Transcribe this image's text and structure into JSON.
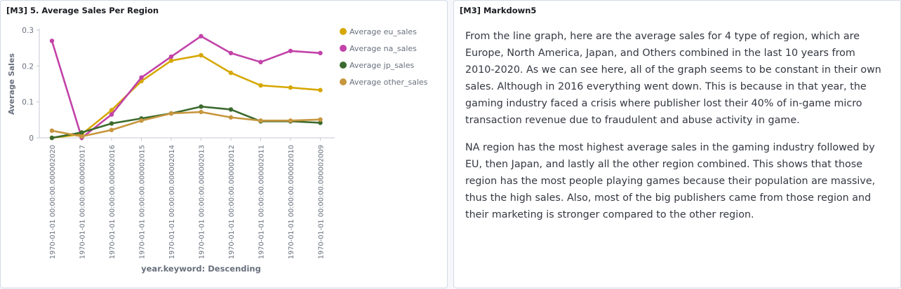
{
  "chart_panel": {
    "title": "[M3] 5. Average Sales Per Region"
  },
  "markdown_panel": {
    "title": "[M3] Markdown5",
    "paragraphs": [
      "From the line graph, here are the average sales for 4 type of region, which are Europe, North America, Japan, and Others combined in the last 10 years from 2010-2020. As we can see here, all of the graph seems to be constant in their own sales. Although in 2016 everything went down. This is because in that year, the gaming industry faced a crisis where publisher lost their 40% of in-game micro transaction revenue due to fraudulent and abuse activity in game.",
      "NA region has the most highest average sales in the gaming industry followed by EU, then Japan, and lastly all the other region combined. This shows that those region has the most people playing games because their population are massive, thus the high sales. Also, most of the big publishers came from those region and their marketing is stronger compared to the other region."
    ]
  },
  "chart_data": {
    "type": "line",
    "xlabel": "year.keyword: Descending",
    "ylabel": "Average Sales",
    "ylim": [
      0,
      0.3
    ],
    "yticks": [
      0,
      0.1,
      0.2,
      0.3
    ],
    "ytick_labels": [
      "0",
      "0.1",
      "0.2",
      "0.3"
    ],
    "grid": false,
    "legend_position": "right",
    "categories": [
      "1970-01-01 00:00:00.000002020",
      "1970-01-01 00:00:00.000002017",
      "1970-01-01 00:00:00.000002016",
      "1970-01-01 00:00:00.000002015",
      "1970-01-01 00:00:00.000002014",
      "1970-01-01 00:00:00.000002013",
      "1970-01-01 00:00:00.000002012",
      "1970-01-01 00:00:00.000002011",
      "1970-01-01 00:00:00.000002010",
      "1970-01-01 00:00:00.000002009"
    ],
    "series": [
      {
        "name": "Average eu_sales",
        "color": "#d6a700",
        "values": [
          0.0,
          0.01,
          0.077,
          0.158,
          0.215,
          0.23,
          0.181,
          0.146,
          0.14,
          0.133
        ]
      },
      {
        "name": "Average na_sales",
        "color": "#c242a8",
        "values": [
          0.27,
          0.0,
          0.065,
          0.168,
          0.226,
          0.283,
          0.236,
          0.211,
          0.242,
          0.236
        ]
      },
      {
        "name": "Average jp_sales",
        "color": "#3c6a2e",
        "values": [
          0.0,
          0.015,
          0.04,
          0.054,
          0.068,
          0.087,
          0.079,
          0.046,
          0.046,
          0.042
        ]
      },
      {
        "name": "Average other_sales",
        "color": "#c7963f",
        "values": [
          0.02,
          0.004,
          0.022,
          0.048,
          0.068,
          0.072,
          0.057,
          0.048,
          0.048,
          0.051
        ]
      }
    ]
  }
}
